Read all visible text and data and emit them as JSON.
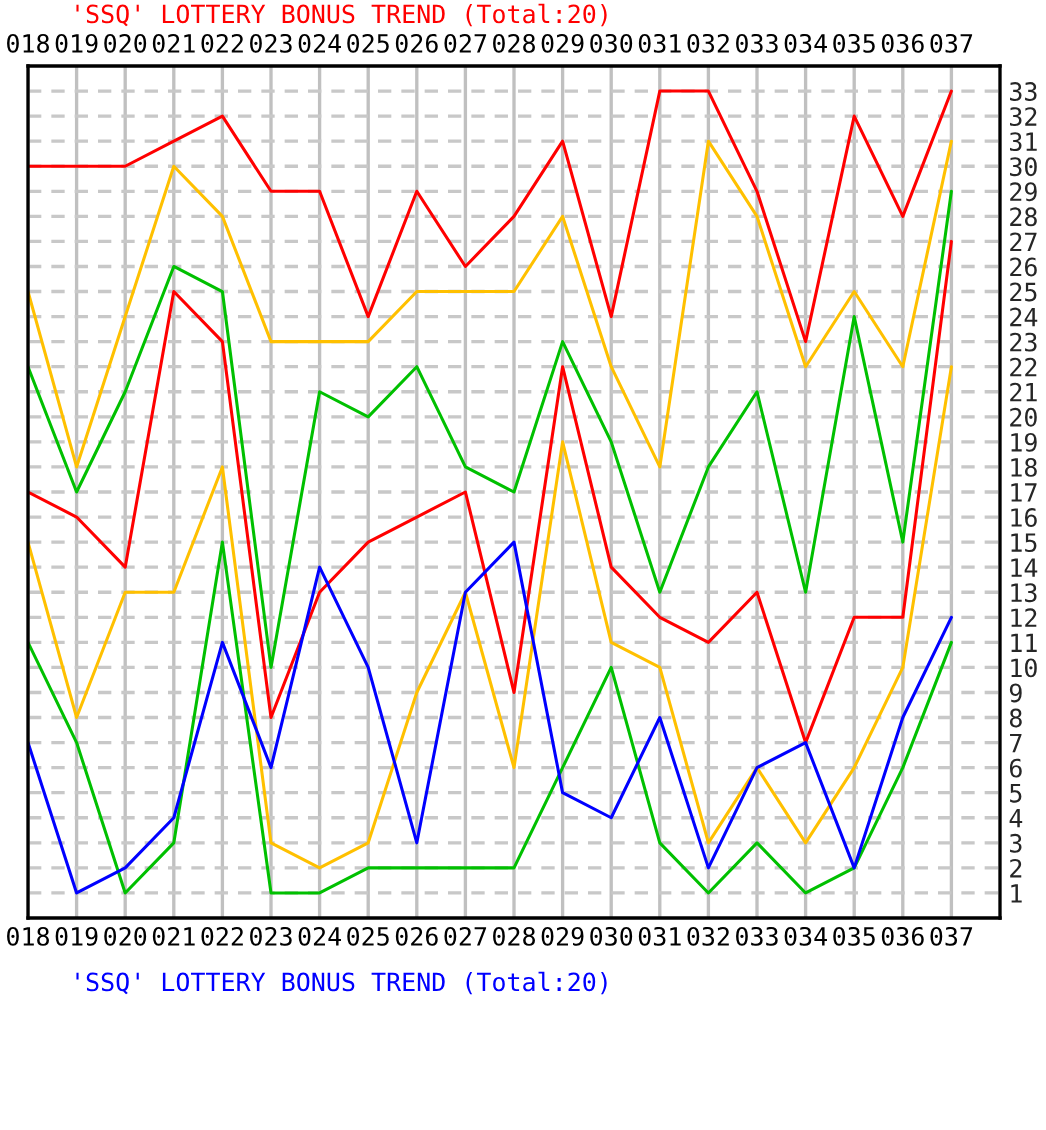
{
  "chart_data": {
    "type": "line",
    "title": "'SSQ' LOTTERY BONUS TREND (Total:20)",
    "annotations": [
      "'SSQ' LOTTERY BONUS TREND (Total:20)"
    ],
    "categories": [
      "018",
      "019",
      "020",
      "021",
      "022",
      "023",
      "024",
      "025",
      "026",
      "027",
      "028",
      "029",
      "030",
      "031",
      "032",
      "033",
      "034",
      "035",
      "036",
      "037"
    ],
    "series": [
      {
        "color": "#ff0000",
        "values": [
          30,
          30,
          30,
          31,
          32,
          29,
          29,
          24,
          29,
          26,
          28,
          31,
          24,
          33,
          33,
          29,
          23,
          32,
          28,
          33
        ]
      },
      {
        "color": "#ffc000",
        "values": [
          25,
          18,
          24,
          30,
          28,
          23,
          23,
          23,
          25,
          25,
          25,
          28,
          22,
          18,
          31,
          28,
          22,
          25,
          22,
          31
        ]
      },
      {
        "color": "#00c000",
        "values": [
          22,
          17,
          21,
          26,
          25,
          10,
          21,
          20,
          22,
          18,
          17,
          23,
          19,
          13,
          18,
          21,
          13,
          24,
          15,
          29
        ]
      },
      {
        "color": "#ff0000",
        "values": [
          17,
          16,
          14,
          25,
          23,
          8,
          13,
          15,
          16,
          17,
          9,
          22,
          14,
          12,
          11,
          13,
          7,
          12,
          12,
          27
        ]
      },
      {
        "color": "#ffc000",
        "values": [
          15,
          8,
          13,
          13,
          18,
          3,
          2,
          3,
          9,
          13,
          6,
          19,
          11,
          10,
          3,
          6,
          3,
          6,
          10,
          22
        ]
      },
      {
        "color": "#00c000",
        "values": [
          11,
          7,
          1,
          3,
          15,
          1,
          1,
          2,
          2,
          2,
          2,
          6,
          10,
          3,
          1,
          3,
          1,
          2,
          6,
          11
        ]
      },
      {
        "color": "#0000ff",
        "values": [
          7,
          1,
          2,
          4,
          11,
          6,
          14,
          10,
          3,
          13,
          15,
          5,
          4,
          8,
          2,
          6,
          7,
          2,
          8,
          12
        ]
      }
    ],
    "ylim": [
      0,
      34
    ],
    "yticks": [
      1,
      2,
      3,
      4,
      5,
      6,
      7,
      8,
      9,
      10,
      11,
      12,
      13,
      14,
      15,
      16,
      17,
      18,
      19,
      20,
      21,
      22,
      23,
      24,
      25,
      26,
      27,
      28,
      29,
      30,
      31,
      32,
      33
    ],
    "grid": true,
    "marker": "none",
    "line_style": "solid"
  }
}
